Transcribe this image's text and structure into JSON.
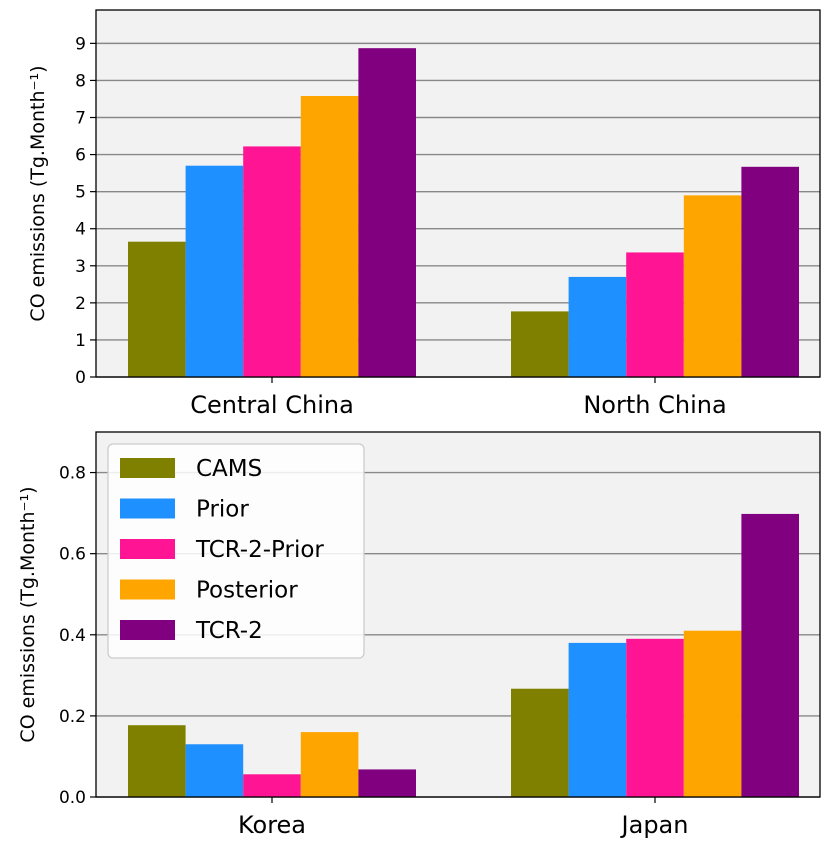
{
  "chart_data": [
    {
      "type": "bar",
      "categories": [
        "Central China",
        "North China"
      ],
      "series": [
        {
          "name": "CAMS",
          "color": "#808000",
          "values": [
            3.65,
            1.77
          ]
        },
        {
          "name": "Prior",
          "color": "#1e90ff",
          "values": [
            5.7,
            2.7
          ]
        },
        {
          "name": "TCR-2-Prior",
          "color": "#ff1493",
          "values": [
            6.22,
            3.36
          ]
        },
        {
          "name": "Posterior",
          "color": "#ffa500",
          "values": [
            7.58,
            4.9
          ]
        },
        {
          "name": "TCR-2",
          "color": "#800080",
          "values": [
            8.87,
            5.67
          ]
        }
      ],
      "ylabel": "CO emissions (Tg.Month⁻¹)",
      "ylim": [
        0,
        9.9
      ],
      "yticks": [
        "0",
        "1",
        "2",
        "3",
        "4",
        "5",
        "6",
        "7",
        "8",
        "9"
      ],
      "grid": true,
      "legend": false
    },
    {
      "type": "bar",
      "categories": [
        "Korea",
        "Japan"
      ],
      "series": [
        {
          "name": "CAMS",
          "color": "#808000",
          "values": [
            0.177,
            0.267
          ]
        },
        {
          "name": "Prior",
          "color": "#1e90ff",
          "values": [
            0.13,
            0.38
          ]
        },
        {
          "name": "TCR-2-Prior",
          "color": "#ff1493",
          "values": [
            0.056,
            0.39
          ]
        },
        {
          "name": "Posterior",
          "color": "#ffa500",
          "values": [
            0.16,
            0.41
          ]
        },
        {
          "name": "TCR-2",
          "color": "#800080",
          "values": [
            0.068,
            0.698
          ]
        }
      ],
      "ylabel": "CO emissions (Tg.Month⁻¹)",
      "ylim": [
        0,
        0.9
      ],
      "yticks": [
        "0.0",
        "0.2",
        "0.4",
        "0.6",
        "0.8"
      ],
      "grid": true,
      "legend": "top-left"
    }
  ]
}
